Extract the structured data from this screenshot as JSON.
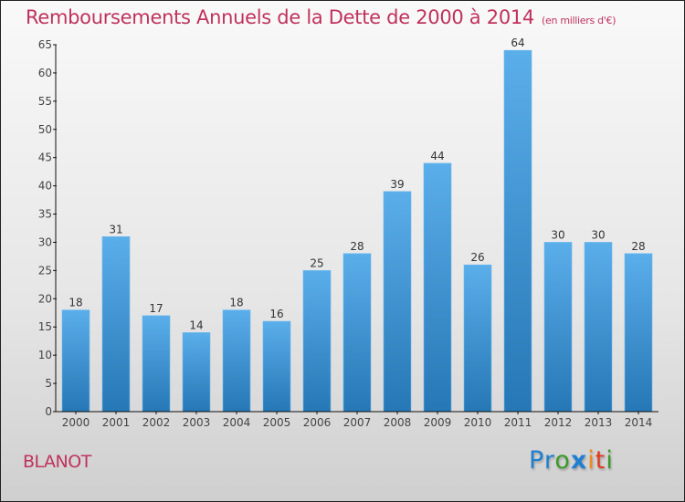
{
  "header": {
    "title": "Remboursements Annuels de la Dette de 2000 à 2014",
    "unit_note": "(en milliers d'€)"
  },
  "footer": {
    "commune": "BLANOT",
    "logo": {
      "letters": [
        {
          "char": "P",
          "color": "#1f7fd0"
        },
        {
          "char": "r",
          "color": "#1f7fd0"
        },
        {
          "char": "o",
          "color": "#3a9a2a"
        },
        {
          "char": "x",
          "color": "#1f7fd0"
        },
        {
          "char": "i",
          "color": "#f08a1c"
        },
        {
          "char": "t",
          "color": "#e23a1e"
        },
        {
          "char": "i",
          "color": "#3a9a2a"
        }
      ]
    }
  },
  "colors": {
    "bar_top": "#5aaeea",
    "bar_bottom": "#2677b5",
    "title": "#c0325e"
  },
  "chart_data": {
    "type": "bar",
    "title": "Remboursements Annuels de la Dette de 2000 à 2014",
    "subtitle": "(en milliers d'€)",
    "xlabel": "",
    "ylabel": "",
    "categories": [
      "2000",
      "2001",
      "2002",
      "2003",
      "2004",
      "2005",
      "2006",
      "2007",
      "2008",
      "2009",
      "2010",
      "2011",
      "2012",
      "2013",
      "2014"
    ],
    "values": [
      18,
      31,
      17,
      14,
      18,
      16,
      25,
      28,
      39,
      44,
      26,
      64,
      30,
      30,
      28
    ],
    "ylim": [
      0,
      65
    ],
    "yticks": [
      0,
      5,
      10,
      15,
      20,
      25,
      30,
      35,
      40,
      45,
      50,
      55,
      60,
      65
    ],
    "grid": false,
    "legend": "none",
    "data_labels": true
  }
}
